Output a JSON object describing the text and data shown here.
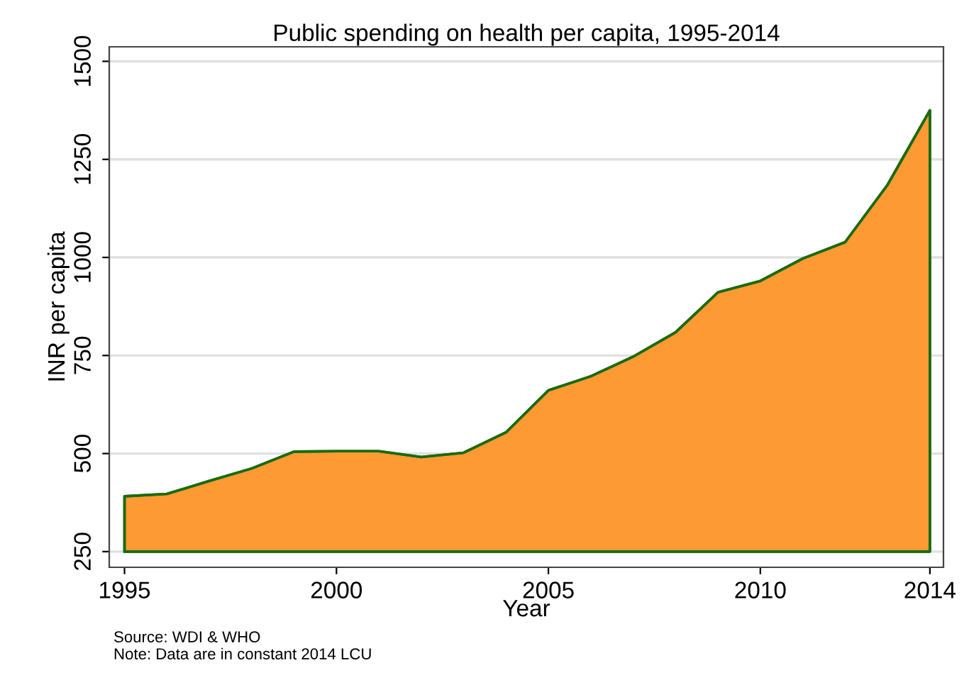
{
  "chart_data": {
    "type": "area",
    "title": "Public spending on health per capita, 1995-2014",
    "xlabel": "Year",
    "ylabel": "INR per capita",
    "x": [
      1995,
      1996,
      1997,
      1998,
      1999,
      2000,
      2001,
      2002,
      2003,
      2004,
      2005,
      2006,
      2007,
      2008,
      2009,
      2010,
      2011,
      2012,
      2013,
      2014
    ],
    "series": [
      {
        "color": "#fd9a33",
        "values": [
          391,
          397,
          430,
          462,
          505,
          506,
          506,
          491,
          502,
          554,
          661,
          697,
          747,
          809,
          911,
          940,
          997,
          1039,
          1185,
          1375
        ]
      }
    ],
    "xlim": [
      1994.64,
      2014.32
    ],
    "xticks": [
      1995,
      2000,
      2005,
      2010,
      2014
    ],
    "ylim": [
      210,
      1537
    ],
    "yticks": [
      250,
      500,
      750,
      1000,
      1250,
      1500
    ],
    "grid": "y",
    "annotations": [
      "Source: WDI & WHO",
      "Note: Data are in constant 2014 LCU"
    ]
  }
}
